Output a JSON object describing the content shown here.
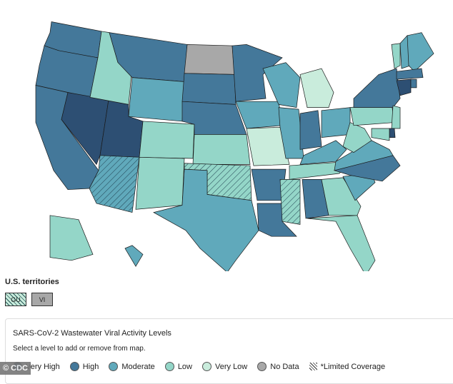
{
  "colors": {
    "very_high": "#2d4f73",
    "high": "#44789a",
    "moderate": "#60a9bb",
    "low": "#94d6c8",
    "very_low": "#c9ecdc",
    "no_data": "#a8a8a8"
  },
  "states": [
    {
      "id": "WA",
      "level": "high"
    },
    {
      "id": "OR",
      "level": "high"
    },
    {
      "id": "CA",
      "level": "high"
    },
    {
      "id": "NV",
      "level": "very_high"
    },
    {
      "id": "UT",
      "level": "very_high"
    },
    {
      "id": "ID",
      "level": "low"
    },
    {
      "id": "MT",
      "level": "high"
    },
    {
      "id": "WY",
      "level": "moderate"
    },
    {
      "id": "CO",
      "level": "low"
    },
    {
      "id": "NM",
      "level": "low"
    },
    {
      "id": "AZ",
      "level": "moderate",
      "limited": true
    },
    {
      "id": "ND",
      "level": "no_data"
    },
    {
      "id": "SD",
      "level": "high"
    },
    {
      "id": "NE",
      "level": "high"
    },
    {
      "id": "KS",
      "level": "low"
    },
    {
      "id": "OK",
      "level": "low",
      "limited": true
    },
    {
      "id": "TX",
      "level": "moderate"
    },
    {
      "id": "MN",
      "level": "high"
    },
    {
      "id": "IA",
      "level": "moderate"
    },
    {
      "id": "MO",
      "level": "very_low"
    },
    {
      "id": "AR",
      "level": "high"
    },
    {
      "id": "LA",
      "level": "high"
    },
    {
      "id": "WI",
      "level": "moderate"
    },
    {
      "id": "IL",
      "level": "moderate"
    },
    {
      "id": "MI",
      "level": "very_low"
    },
    {
      "id": "IN",
      "level": "high"
    },
    {
      "id": "OH",
      "level": "moderate"
    },
    {
      "id": "KY",
      "level": "moderate"
    },
    {
      "id": "TN",
      "level": "low"
    },
    {
      "id": "MS",
      "level": "low",
      "limited": true
    },
    {
      "id": "AL",
      "level": "high"
    },
    {
      "id": "GA",
      "level": "low"
    },
    {
      "id": "FL",
      "level": "low"
    },
    {
      "id": "SC",
      "level": "moderate"
    },
    {
      "id": "NC",
      "level": "high"
    },
    {
      "id": "VA",
      "level": "moderate"
    },
    {
      "id": "WV",
      "level": "low"
    },
    {
      "id": "PA",
      "level": "low"
    },
    {
      "id": "NY",
      "level": "high"
    },
    {
      "id": "VT",
      "level": "low"
    },
    {
      "id": "NH",
      "level": "moderate"
    },
    {
      "id": "ME",
      "level": "moderate"
    },
    {
      "id": "MA",
      "level": "high"
    },
    {
      "id": "CT",
      "level": "very_high"
    },
    {
      "id": "RI",
      "level": "high"
    },
    {
      "id": "NJ",
      "level": "low"
    },
    {
      "id": "DE",
      "level": "very_high"
    },
    {
      "id": "MD",
      "level": "low"
    },
    {
      "id": "AK",
      "level": "low"
    },
    {
      "id": "HI",
      "level": "moderate"
    }
  ],
  "territories": {
    "title": "U.S. territories",
    "items": [
      {
        "label": "GU",
        "level": "very_low",
        "limited": true
      },
      {
        "label": "VI",
        "level": "no_data"
      }
    ]
  },
  "legend": {
    "title": "SARS-CoV-2 Wastewater Viral Activity Levels",
    "subtitle": "Select a level to add or remove from map.",
    "items": [
      {
        "label": "Very High",
        "key": "very_high"
      },
      {
        "label": "High",
        "key": "high"
      },
      {
        "label": "Moderate",
        "key": "moderate"
      },
      {
        "label": "Low",
        "key": "low"
      },
      {
        "label": "Very Low",
        "key": "very_low"
      },
      {
        "label": "No Data",
        "key": "no_data"
      }
    ],
    "limited": "*Limited Coverage"
  },
  "credit": "© CDC"
}
